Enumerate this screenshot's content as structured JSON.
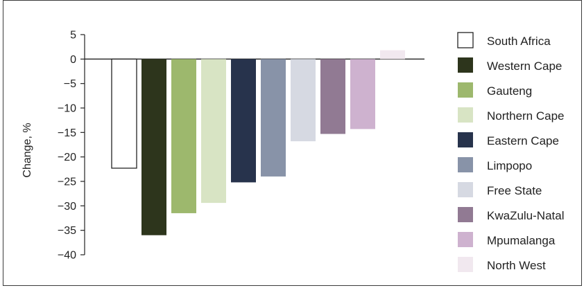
{
  "chart_data": {
    "type": "bar",
    "title": "",
    "xlabel": "",
    "ylabel": "Change, %",
    "ylim": [
      -40,
      5
    ],
    "yticks": [
      5,
      0,
      -5,
      -10,
      -15,
      -20,
      -25,
      -30,
      -35,
      -40
    ],
    "ytick_labels": [
      "5",
      "0",
      "−5",
      "−10",
      "−15",
      "−20",
      "−25",
      "−30",
      "−35",
      "−40"
    ],
    "grid": false,
    "legend_position": "right",
    "categories": [
      "South Africa",
      "Western Cape",
      "Gauteng",
      "Northern Cape",
      "Eastern Cape",
      "Limpopo",
      "Free State",
      "KwaZulu-Natal",
      "Mpumalanga",
      "North West"
    ],
    "values": [
      -22.3,
      -36.0,
      -31.5,
      -29.4,
      -25.2,
      -24.0,
      -16.8,
      -15.3,
      -14.3,
      1.8
    ],
    "colors": [
      "#ffffff",
      "#2d351c",
      "#9db86d",
      "#d8e4c4",
      "#27334c",
      "#8893a8",
      "#d6d9e2",
      "#917a93",
      "#ceb2cf",
      "#f1e8ef"
    ],
    "outline": [
      "#222222",
      "none",
      "none",
      "none",
      "none",
      "none",
      "none",
      "none",
      "none",
      "none"
    ]
  }
}
